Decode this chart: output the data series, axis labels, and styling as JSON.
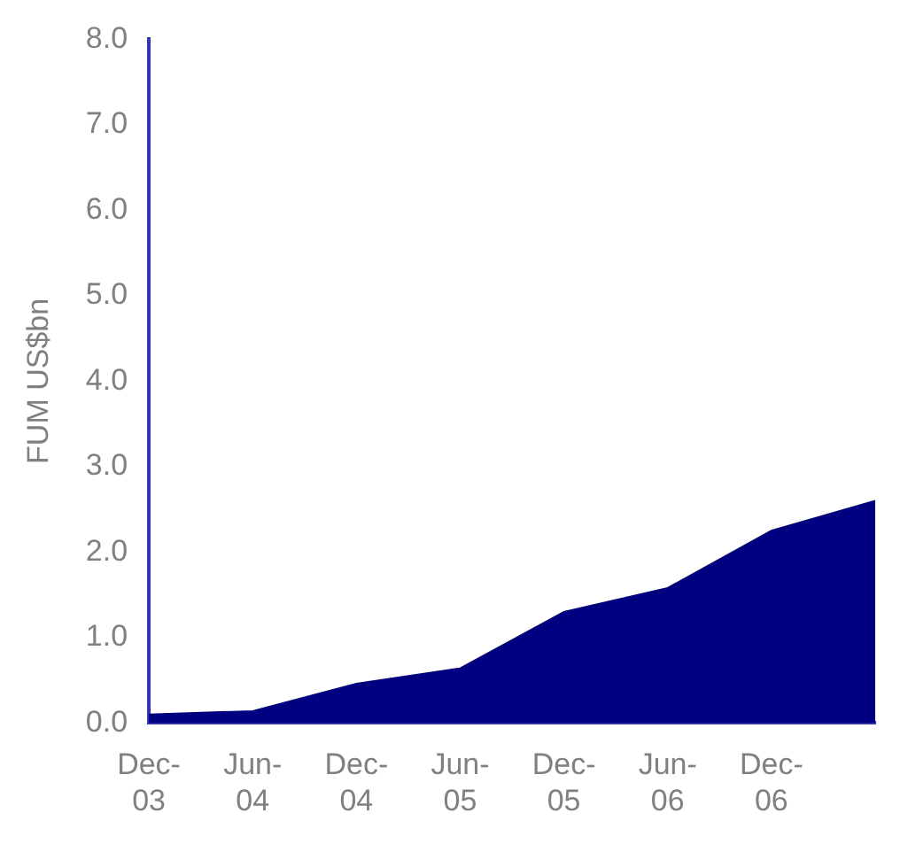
{
  "chart_data": {
    "type": "area",
    "ylabel": "FUM US$bn",
    "categories": [
      "Dec-03",
      "Jun-04",
      "Dec-04",
      "Jun-05",
      "Dec-05",
      "Jun-06",
      "Dec-06",
      null
    ],
    "values": [
      0.1,
      0.14,
      0.46,
      0.64,
      1.3,
      1.58,
      2.25,
      2.6
    ],
    "color": "#000080",
    "ylim": [
      0,
      8
    ],
    "yticks": [
      {
        "value": 0,
        "label": "0.0"
      },
      {
        "value": 1,
        "label": "1.0"
      },
      {
        "value": 2,
        "label": "2.0"
      },
      {
        "value": 3,
        "label": "3.0"
      },
      {
        "value": 4,
        "label": "4.0"
      },
      {
        "value": 5,
        "label": "5.0"
      },
      {
        "value": 6,
        "label": "6.0"
      },
      {
        "value": 7,
        "label": "7.0"
      },
      {
        "value": 8,
        "label": "8.0"
      }
    ],
    "grid": false,
    "legend": false
  }
}
